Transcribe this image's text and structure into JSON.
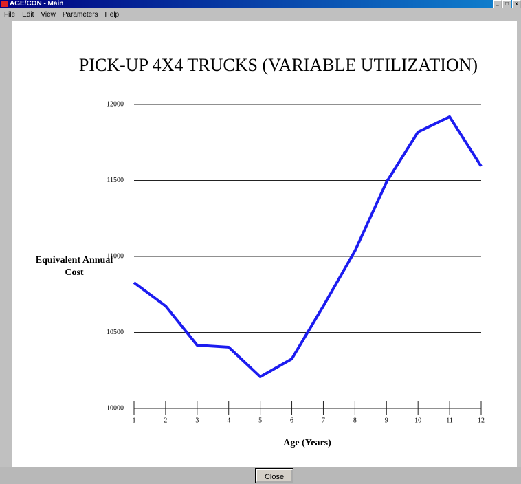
{
  "window": {
    "title": "AGE/CON - Main",
    "menu": [
      "File",
      "Edit",
      "View",
      "Parameters",
      "Help"
    ],
    "button": "Close"
  },
  "chart_data": {
    "type": "line",
    "title": "PICK-UP 4X4 TRUCKS (VARIABLE UTILIZATION)",
    "xlabel": "Age (Years)",
    "ylabel": "Equivalent Annual Cost",
    "x": [
      1,
      2,
      3,
      4,
      5,
      6,
      7,
      8,
      9,
      10,
      11,
      12
    ],
    "values": [
      10828,
      10674,
      10416,
      10403,
      10208,
      10326,
      10674,
      11036,
      11489,
      11819,
      11919,
      11593
    ],
    "color": "#1c1cf0",
    "xlim": [
      1,
      12
    ],
    "xticks": [
      1,
      2,
      3,
      4,
      5,
      6,
      7,
      8,
      9,
      10,
      11,
      12
    ],
    "ylim": [
      10000,
      12000
    ],
    "yticks": [
      10000,
      10500,
      11000,
      11500,
      12000
    ],
    "grid": true
  }
}
